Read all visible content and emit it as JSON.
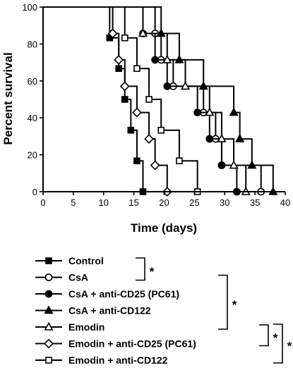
{
  "chart_data": {
    "type": "line",
    "subtype": "kaplan-meier",
    "title": "",
    "xlabel": "Time (days)",
    "ylabel": "Percent survival",
    "xlim": [
      0,
      40
    ],
    "ylim": [
      0,
      100
    ],
    "xticks": [
      0,
      5,
      10,
      15,
      20,
      25,
      30,
      35,
      40
    ],
    "yticks": [
      0,
      20,
      40,
      60,
      80,
      100
    ],
    "grid": false,
    "legend_position": "bottom",
    "series": [
      {
        "name": "Control",
        "marker": "square-filled",
        "steps": [
          [
            0,
            100
          ],
          [
            11,
            83.3
          ],
          [
            12.5,
            66.7
          ],
          [
            13.5,
            50
          ],
          [
            14.5,
            33.3
          ],
          [
            15.5,
            16.7
          ],
          [
            16.5,
            0
          ]
        ]
      },
      {
        "name": "CsA",
        "marker": "circle-open",
        "steps": [
          [
            0,
            100
          ],
          [
            18.5,
            85.7
          ],
          [
            19.5,
            71.4
          ],
          [
            21.5,
            57.1
          ],
          [
            26.5,
            42.9
          ],
          [
            28.5,
            28.6
          ],
          [
            29.5,
            14.3
          ],
          [
            36,
            0
          ]
        ]
      },
      {
        "name": "CsA + anti-CD25 (PC61)",
        "marker": "circle-filled",
        "steps": [
          [
            0,
            100
          ],
          [
            16.5,
            85.7
          ],
          [
            18.5,
            71.4
          ],
          [
            20.5,
            57.1
          ],
          [
            25.5,
            42.9
          ],
          [
            27.5,
            28.6
          ],
          [
            29.5,
            14.3
          ],
          [
            32,
            0
          ]
        ]
      },
      {
        "name": "CsA + anti-CD122",
        "marker": "triangle-filled",
        "steps": [
          [
            0,
            100
          ],
          [
            19.5,
            85.7
          ],
          [
            22.5,
            71.4
          ],
          [
            26.5,
            57.1
          ],
          [
            31.5,
            42.9
          ],
          [
            32.5,
            28.6
          ],
          [
            34.5,
            14.3
          ],
          [
            38,
            0
          ]
        ]
      },
      {
        "name": "Emodin",
        "marker": "triangle-open",
        "steps": [
          [
            0,
            100
          ],
          [
            16.5,
            85.7
          ],
          [
            20.5,
            71.4
          ],
          [
            23.5,
            57.1
          ],
          [
            27.5,
            42.9
          ],
          [
            29.5,
            28.6
          ],
          [
            31.5,
            14.3
          ],
          [
            33.5,
            0
          ]
        ]
      },
      {
        "name": "Emodin + anti-CD25 (PC61)",
        "marker": "diamond-open",
        "steps": [
          [
            0,
            100
          ],
          [
            11.5,
            85.7
          ],
          [
            12.5,
            71.4
          ],
          [
            13.5,
            57.1
          ],
          [
            15.5,
            42.9
          ],
          [
            17.5,
            28.6
          ],
          [
            18.5,
            14.3
          ],
          [
            20.5,
            0
          ]
        ]
      },
      {
        "name": "Emodin + anti-CD122",
        "marker": "square-open",
        "steps": [
          [
            0,
            100
          ],
          [
            13.5,
            83.3
          ],
          [
            15.5,
            66.7
          ],
          [
            17.5,
            50
          ],
          [
            19.5,
            33.3
          ],
          [
            22.5,
            16.7
          ],
          [
            25.5,
            0
          ]
        ]
      }
    ],
    "significance": [
      {
        "label": "*",
        "groups": [
          "Control",
          "CsA"
        ]
      },
      {
        "label": "*",
        "groups": [
          "CsA",
          "Emodin"
        ]
      },
      {
        "label": "*",
        "groups": [
          "Emodin",
          "Emodin + anti-CD25 (PC61)"
        ]
      },
      {
        "label": "*",
        "groups": [
          "Emodin",
          "Emodin + anti-CD122"
        ]
      }
    ]
  }
}
